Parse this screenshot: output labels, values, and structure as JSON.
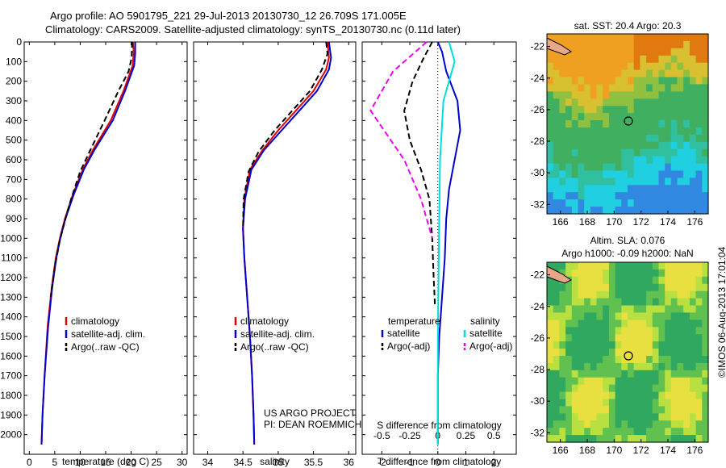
{
  "header": {
    "line1": "Argo profile: AO 5901795_221 29-Jul-2013 20130730_12 26.709S 171.005E",
    "line2": "Climatology: CARS2009. Satellite-adjusted climatology: synTS_20130730.nc (0.11d later)"
  },
  "colors": {
    "climatology": "#e00000",
    "satellite": "#0000cc",
    "argo": "#000000",
    "argo_s": "#ee00ee",
    "satellite_s": "#00dddd"
  },
  "chart_data": [
    {
      "id": "temperature",
      "type": "line",
      "xlabel": "temperature (deg C)",
      "ylabel": "",
      "xlim": [
        -1,
        31
      ],
      "ylim": [
        2100,
        0
      ],
      "xticks": [
        "0",
        "5",
        "10",
        "15",
        "20",
        "25",
        "30"
      ],
      "yticks": [
        "0",
        "100",
        "200",
        "300",
        "400",
        "500",
        "600",
        "700",
        "800",
        "900",
        "1000",
        "1100",
        "1200",
        "1300",
        "1400",
        "1500",
        "1600",
        "1700",
        "1800",
        "1900",
        "2000"
      ],
      "legend": [
        "climatology",
        "satellite-adj. clim.",
        "Argo(..raw -QC)"
      ],
      "series": [
        {
          "name": "climatology",
          "points": [
            [
              20.4,
              0
            ],
            [
              20.5,
              60
            ],
            [
              20.3,
              120
            ],
            [
              18.5,
              250
            ],
            [
              16,
              400
            ],
            [
              12.5,
              550
            ],
            [
              10.5,
              650
            ],
            [
              8.5,
              780
            ],
            [
              7,
              900
            ],
            [
              6,
              1000
            ],
            [
              5.2,
              1100
            ],
            [
              4.4,
              1250
            ],
            [
              3.6,
              1450
            ],
            [
              3.0,
              1700
            ],
            [
              2.6,
              1900
            ],
            [
              2.4,
              2050
            ]
          ]
        },
        {
          "name": "satellite-adj. clim.",
          "points": [
            [
              20.8,
              0
            ],
            [
              20.8,
              60
            ],
            [
              20.6,
              120
            ],
            [
              18.8,
              250
            ],
            [
              16.4,
              400
            ],
            [
              12.8,
              550
            ],
            [
              10.7,
              650
            ],
            [
              8.7,
              780
            ],
            [
              7.1,
              900
            ],
            [
              6.1,
              1000
            ],
            [
              5.3,
              1100
            ],
            [
              4.5,
              1250
            ],
            [
              3.7,
              1450
            ],
            [
              3.0,
              1700
            ],
            [
              2.6,
              1900
            ],
            [
              2.4,
              2050
            ]
          ]
        },
        {
          "name": "Argo(..raw -QC)",
          "points": [
            [
              20.2,
              0
            ],
            [
              20.1,
              80
            ],
            [
              19.5,
              150
            ],
            [
              17.5,
              250
            ],
            [
              14.8,
              400
            ],
            [
              12,
              550
            ],
            [
              10,
              660
            ],
            [
              8.2,
              800
            ],
            [
              6.9,
              920
            ],
            [
              5.9,
              1020
            ],
            [
              5,
              1150
            ],
            [
              4.2,
              1300
            ]
          ]
        }
      ]
    },
    {
      "id": "salinity",
      "type": "line",
      "xlabel": "salinity",
      "xlim": [
        33.8,
        36.1
      ],
      "ylim": [
        2100,
        0
      ],
      "xticks": [
        "34",
        "34.5",
        "35",
        "35.5",
        "36"
      ],
      "legend": [
        "climatology",
        "satellite-adj. clim.",
        "Argo(..raw -QC)"
      ],
      "annotation": [
        "US ARGO PROJECT",
        "PI: DEAN ROEMMICH"
      ],
      "series": [
        {
          "name": "climatology",
          "points": [
            [
              35.7,
              0
            ],
            [
              35.72,
              80
            ],
            [
              35.68,
              140
            ],
            [
              35.5,
              250
            ],
            [
              35.25,
              350
            ],
            [
              35.0,
              450
            ],
            [
              34.78,
              550
            ],
            [
              34.6,
              650
            ],
            [
              34.52,
              800
            ],
            [
              34.5,
              950
            ],
            [
              34.52,
              1100
            ],
            [
              34.56,
              1300
            ],
            [
              34.6,
              1500
            ],
            [
              34.63,
              1700
            ],
            [
              34.65,
              1900
            ],
            [
              34.66,
              2050
            ]
          ]
        },
        {
          "name": "satellite-adj. clim.",
          "points": [
            [
              35.72,
              0
            ],
            [
              35.75,
              80
            ],
            [
              35.72,
              140
            ],
            [
              35.55,
              250
            ],
            [
              35.3,
              350
            ],
            [
              35.05,
              450
            ],
            [
              34.8,
              550
            ],
            [
              34.62,
              650
            ],
            [
              34.53,
              800
            ],
            [
              34.5,
              950
            ],
            [
              34.52,
              1100
            ],
            [
              34.56,
              1300
            ],
            [
              34.6,
              1500
            ],
            [
              34.63,
              1700
            ],
            [
              34.65,
              1900
            ],
            [
              34.66,
              2050
            ]
          ]
        },
        {
          "name": "Argo(..raw -QC)",
          "points": [
            [
              35.68,
              0
            ],
            [
              35.7,
              60
            ],
            [
              35.62,
              140
            ],
            [
              35.45,
              250
            ],
            [
              35.2,
              350
            ],
            [
              34.95,
              450
            ],
            [
              34.72,
              560
            ],
            [
              34.58,
              660
            ],
            [
              34.51,
              800
            ],
            [
              34.5,
              950
            ]
          ]
        }
      ]
    },
    {
      "id": "difference",
      "type": "line",
      "xlabel": "T difference from climatology",
      "xlabel2": "S difference from climatology",
      "xlim": [
        -2.7,
        2.8
      ],
      "ylim": [
        2100,
        0
      ],
      "xticks": [
        "-2",
        "-1",
        "0",
        "1",
        "2"
      ],
      "xticks2": [
        "-0.5",
        "-0.25",
        "0",
        "0.25",
        "0.5"
      ],
      "legend_headers": [
        "temperature",
        "salinity"
      ],
      "legend": [
        "satellite",
        "Argo(-adj)",
        "satellite",
        "Argo(-adj)"
      ],
      "series": [
        {
          "name": "satellite",
          "points": [
            [
              0,
              0
            ],
            [
              0.15,
              50
            ],
            [
              0.3,
              150
            ],
            [
              0.7,
              300
            ],
            [
              0.8,
              450
            ],
            [
              0.6,
              600
            ],
            [
              0.4,
              750
            ],
            [
              0.3,
              900
            ],
            [
              0.25,
              1100
            ],
            [
              0.15,
              1300
            ],
            [
              0.05,
              1500
            ],
            [
              0,
              1700
            ],
            [
              0,
              2050
            ]
          ]
        },
        {
          "name": "Argo(-adj)",
          "points": [
            [
              -0.2,
              0
            ],
            [
              -0.5,
              80
            ],
            [
              -0.9,
              200
            ],
            [
              -1.2,
              350
            ],
            [
              -1.0,
              500
            ],
            [
              -0.6,
              650
            ],
            [
              -0.3,
              800
            ],
            [
              -0.2,
              1000
            ],
            [
              -0.15,
              1200
            ],
            [
              -0.1,
              1350
            ]
          ]
        },
        {
          "name": "satellite",
          "points": [
            [
              0.1,
              0
            ],
            [
              0.15,
              100
            ],
            [
              0.05,
              300
            ],
            [
              0.02,
              600
            ],
            [
              0.01,
              1000
            ],
            [
              0,
              1500
            ],
            [
              0,
              2050
            ]
          ]
        },
        {
          "name": "Argo(-adj)",
          "points": [
            [
              -0.1,
              0
            ],
            [
              -0.4,
              150
            ],
            [
              -0.6,
              350
            ],
            [
              -0.3,
              600
            ],
            [
              -0.15,
              800
            ],
            [
              -0.05,
              1000
            ]
          ]
        }
      ]
    }
  ],
  "maps": {
    "sst": {
      "title": "sat. SST: 20.4 Argo: 20.3",
      "xticks": [
        "166",
        "168",
        "170",
        "172",
        "174",
        "176"
      ],
      "yticks": [
        "-22",
        "-24",
        "-26",
        "-28",
        "-30",
        "-32"
      ]
    },
    "sla": {
      "title1": "Altim. SLA: 0.076",
      "title2": "Argo h1000: -0.09 h2000: NaN",
      "xticks": [
        "166",
        "168",
        "170",
        "172",
        "174",
        "176"
      ],
      "yticks": [
        "-22",
        "-24",
        "-26",
        "-28",
        "-30",
        "-32"
      ]
    }
  },
  "side_label": "©IMOS 06-Aug-2013 17:01:04"
}
